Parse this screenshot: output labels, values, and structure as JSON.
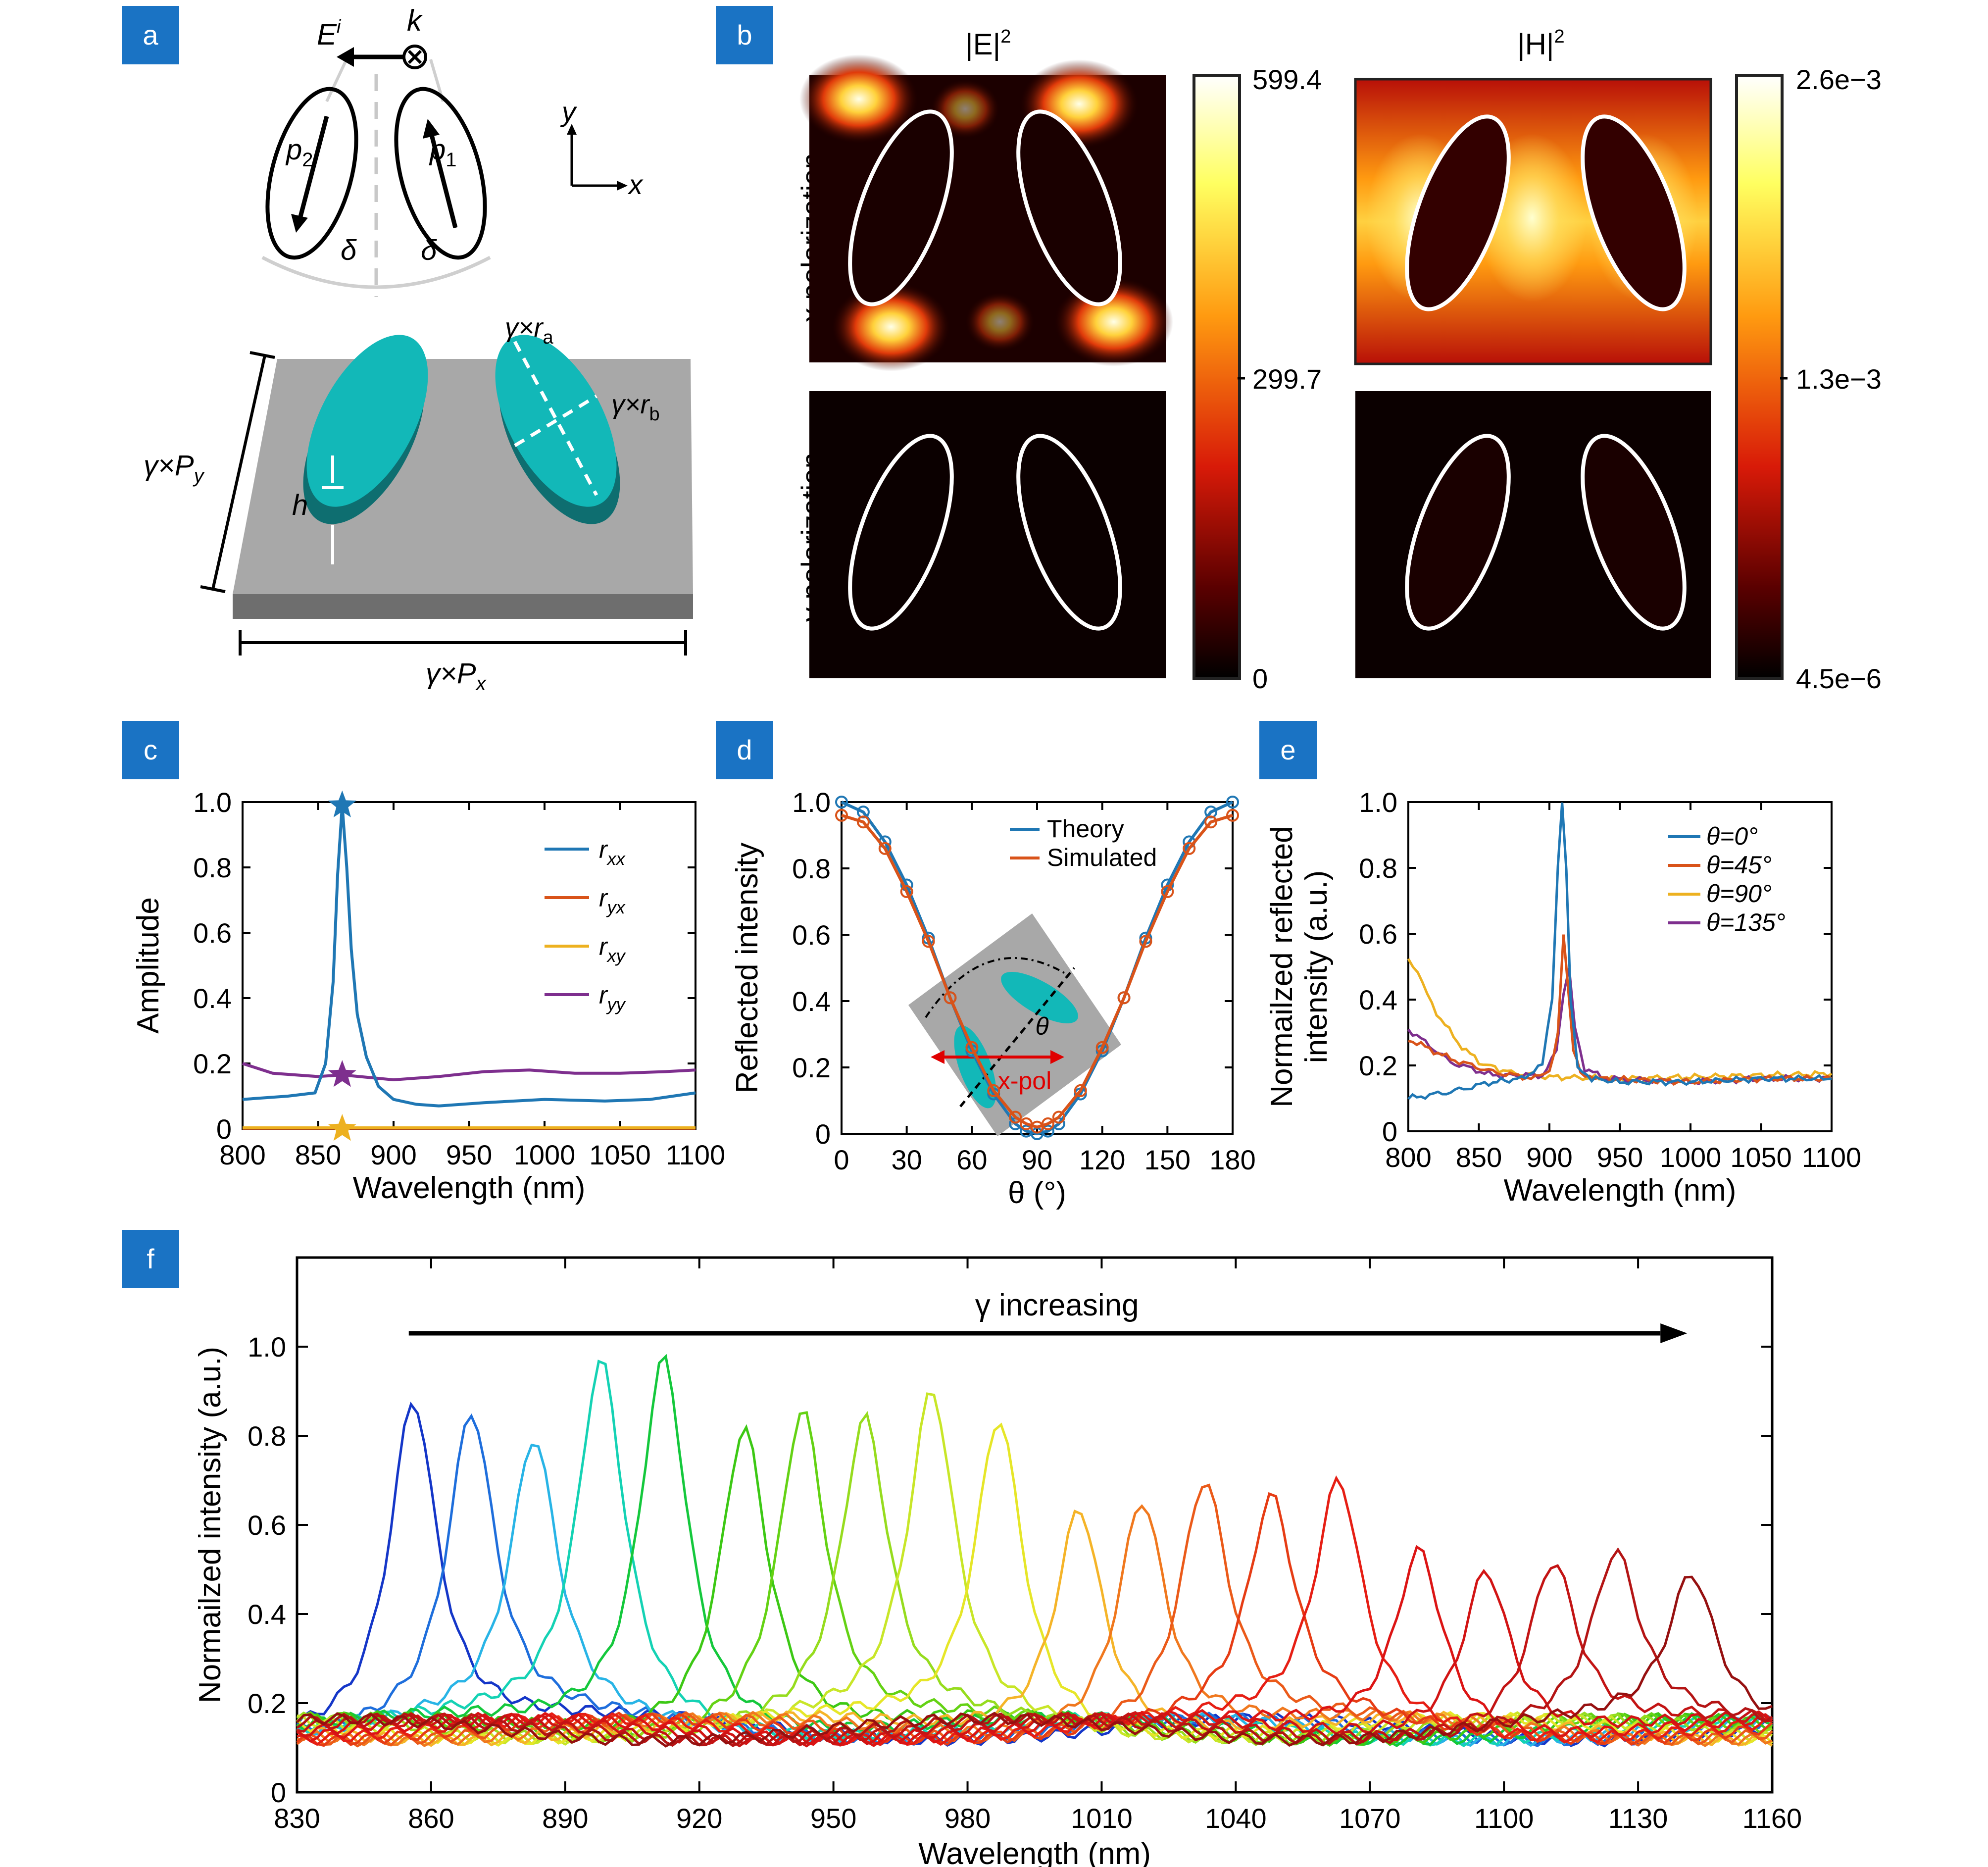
{
  "panels": {
    "a": "a",
    "b": "b",
    "c": "c",
    "d": "d",
    "e": "e",
    "f": "f"
  },
  "panel_a": {
    "incident_field": "E",
    "incident_sup": "i",
    "wavevector": "k",
    "dipole_left": "p",
    "dipole_left_sub": "2",
    "dipole_right": "p",
    "dipole_right_sub": "1",
    "angle": "δ",
    "axis_x": "x",
    "axis_y": "y",
    "dim_ra": "γ×r",
    "dim_ra_sub": "a",
    "dim_rb": "γ×r",
    "dim_rb_sub": "b",
    "dim_py": "γ×P",
    "dim_py_sub": "y",
    "dim_px": "γ×P",
    "dim_px_sub": "x",
    "height": "h",
    "colors": {
      "particle": "#12b8b8",
      "particle_side": "#0e6e70",
      "substrate_top": "#a8a8a8",
      "substrate_side": "#6e6e6e"
    }
  },
  "panel_b": {
    "title_E": "|E|",
    "title_E_sup": "2",
    "title_H": "|H|",
    "title_H_sup": "2",
    "row_x": "x polarization",
    "row_y": "y polarization",
    "cbar_E": [
      "599.4",
      "299.7",
      "0"
    ],
    "cbar_H": [
      "2.6e−3",
      "1.3e−3",
      "4.5e−6"
    ]
  },
  "chart_data": [
    {
      "id": "c",
      "type": "line",
      "xlabel": "Wavelength (nm)",
      "ylabel": "Amplitude",
      "xlim": [
        800,
        1100
      ],
      "ylim": [
        0,
        1.0
      ],
      "xticks": [
        800,
        850,
        900,
        950,
        1000,
        1050,
        1100
      ],
      "yticks": [
        0,
        0.2,
        0.4,
        0.6,
        0.8,
        1.0
      ],
      "ytick_labels": [
        "0",
        "0.2",
        "0.4",
        "0.6",
        "0.8",
        "1.0"
      ],
      "series": [
        {
          "name": "r",
          "sub": "xx",
          "color": "#1f77b4",
          "x": [
            800,
            830,
            848,
            855,
            860,
            863,
            866,
            869,
            872,
            876,
            882,
            890,
            900,
            915,
            930,
            960,
            1000,
            1040,
            1070,
            1100
          ],
          "y": [
            0.09,
            0.1,
            0.11,
            0.2,
            0.45,
            0.78,
            0.99,
            0.8,
            0.55,
            0.35,
            0.22,
            0.13,
            0.09,
            0.075,
            0.07,
            0.08,
            0.09,
            0.085,
            0.09,
            0.11
          ]
        },
        {
          "name": "r",
          "sub": "yx",
          "color": "#d95319",
          "x": [
            800,
            1100
          ],
          "y": [
            0.002,
            0.002
          ]
        },
        {
          "name": "r",
          "sub": "xy",
          "color": "#edb120",
          "x": [
            800,
            1100
          ],
          "y": [
            0.003,
            0.003
          ]
        },
        {
          "name": "r",
          "sub": "yy",
          "color": "#7e2f8e",
          "x": [
            800,
            820,
            850,
            866,
            900,
            930,
            960,
            990,
            1020,
            1050,
            1080,
            1100
          ],
          "y": [
            0.2,
            0.17,
            0.16,
            0.165,
            0.15,
            0.16,
            0.175,
            0.18,
            0.17,
            0.17,
            0.175,
            0.18
          ]
        }
      ],
      "stars": [
        {
          "x": 866,
          "y": 0.99,
          "color": "#1f77b4"
        },
        {
          "x": 866,
          "y": 0.165,
          "color": "#7e2f8e"
        },
        {
          "x": 866,
          "y": 0.0,
          "color": "#edb120"
        }
      ]
    },
    {
      "id": "d",
      "type": "line",
      "xlabel": "θ (°)",
      "ylabel": "Reflected intensity",
      "xlim": [
        0,
        180
      ],
      "ylim": [
        0,
        1.0
      ],
      "xticks": [
        0,
        30,
        60,
        90,
        120,
        150,
        180
      ],
      "yticks": [
        0,
        0.2,
        0.4,
        0.6,
        0.8,
        1.0
      ],
      "ytick_labels": [
        "0",
        "0.2",
        "0.4",
        "0.6",
        "0.8",
        "1.0"
      ],
      "series": [
        {
          "name": "Theory",
          "color": "#1f77b4",
          "x": [
            0,
            10,
            20,
            30,
            40,
            50,
            60,
            70,
            80,
            85,
            90,
            95,
            100,
            110,
            120,
            130,
            140,
            150,
            160,
            170,
            180
          ],
          "y": [
            1.0,
            0.97,
            0.88,
            0.75,
            0.59,
            0.41,
            0.25,
            0.12,
            0.03,
            0.008,
            0.0,
            0.008,
            0.03,
            0.12,
            0.25,
            0.41,
            0.59,
            0.75,
            0.88,
            0.97,
            1.0
          ]
        },
        {
          "name": "Simulated",
          "color": "#d95319",
          "x": [
            0,
            10,
            20,
            30,
            40,
            50,
            60,
            70,
            80,
            85,
            90,
            95,
            100,
            110,
            120,
            130,
            140,
            150,
            160,
            170,
            180
          ],
          "y": [
            0.96,
            0.94,
            0.86,
            0.73,
            0.58,
            0.41,
            0.26,
            0.13,
            0.05,
            0.03,
            0.02,
            0.03,
            0.05,
            0.13,
            0.26,
            0.41,
            0.58,
            0.73,
            0.86,
            0.94,
            0.96
          ]
        }
      ],
      "inset": {
        "theta": "θ",
        "pol": "x-pol"
      }
    },
    {
      "id": "e",
      "type": "line",
      "xlabel": "Wavelength (nm)",
      "ylabel_lines": [
        "Normailzed reflected",
        "intensity (a.u.)"
      ],
      "xlim": [
        800,
        1100
      ],
      "ylim": [
        0,
        1.0
      ],
      "xticks": [
        800,
        850,
        900,
        950,
        1000,
        1050,
        1100
      ],
      "yticks": [
        0,
        0.2,
        0.4,
        0.6,
        0.8,
        1.0
      ],
      "ytick_labels": [
        "0",
        "0.2",
        "0.4",
        "0.6",
        "0.8",
        "1.0"
      ],
      "series": [
        {
          "name": "θ=0°",
          "color": "#1f77b4",
          "x": [
            800,
            830,
            860,
            880,
            895,
            902,
            906,
            909,
            912,
            915,
            920,
            930,
            950,
            1000,
            1050,
            1100
          ],
          "y": [
            0.1,
            0.12,
            0.15,
            0.16,
            0.2,
            0.4,
            0.8,
            1.0,
            0.8,
            0.4,
            0.2,
            0.16,
            0.15,
            0.15,
            0.16,
            0.16
          ]
        },
        {
          "name": "θ=45°",
          "color": "#d95319",
          "x": [
            800,
            830,
            860,
            890,
            900,
            906,
            910,
            913,
            917,
            922,
            935,
            1000,
            1050,
            1100
          ],
          "y": [
            0.28,
            0.22,
            0.18,
            0.16,
            0.18,
            0.3,
            0.6,
            0.45,
            0.25,
            0.18,
            0.16,
            0.15,
            0.16,
            0.16
          ]
        },
        {
          "name": "θ=90°",
          "color": "#edb120",
          "x": [
            800,
            810,
            820,
            835,
            850,
            870,
            900,
            950,
            1000,
            1050,
            1100
          ],
          "y": [
            0.52,
            0.45,
            0.36,
            0.27,
            0.21,
            0.18,
            0.165,
            0.16,
            0.165,
            0.17,
            0.175
          ]
        },
        {
          "name": "θ=135°",
          "color": "#7e2f8e",
          "x": [
            800,
            815,
            830,
            860,
            895,
            905,
            910,
            914,
            918,
            925,
            940,
            1000,
            1050,
            1100
          ],
          "y": [
            0.31,
            0.26,
            0.21,
            0.17,
            0.17,
            0.24,
            0.42,
            0.5,
            0.32,
            0.19,
            0.16,
            0.15,
            0.16,
            0.16
          ]
        }
      ]
    },
    {
      "id": "f",
      "type": "line",
      "xlabel": "Wavelength (nm)",
      "ylabel": "Normailzed intensity (a.u.)",
      "annotation": "γ increasing",
      "xlim": [
        830,
        1160
      ],
      "ylim": [
        0,
        1.2
      ],
      "xticks": [
        830,
        860,
        890,
        920,
        950,
        980,
        1010,
        1040,
        1070,
        1100,
        1130,
        1160
      ],
      "yticks": [
        0,
        0.2,
        0.4,
        0.6,
        0.8,
        1.0
      ],
      "ytick_labels": [
        "0",
        "0.2",
        "0.4",
        "0.6",
        "0.8",
        "1.0"
      ],
      "peaks": [
        {
          "center": 856,
          "height": 0.9,
          "color": "#1436c8"
        },
        {
          "center": 869,
          "height": 0.85,
          "color": "#1e6edc"
        },
        {
          "center": 883,
          "height": 0.78,
          "color": "#28b4e6"
        },
        {
          "center": 898,
          "height": 0.97,
          "color": "#14d2b4"
        },
        {
          "center": 912,
          "height": 1.0,
          "color": "#14c83c"
        },
        {
          "center": 930,
          "height": 0.85,
          "color": "#3cc814"
        },
        {
          "center": 943,
          "height": 0.87,
          "color": "#64d214"
        },
        {
          "center": 957,
          "height": 0.83,
          "color": "#96dc1e"
        },
        {
          "center": 972,
          "height": 0.89,
          "color": "#c8e628"
        },
        {
          "center": 987,
          "height": 0.85,
          "color": "#e6e628"
        },
        {
          "center": 1005,
          "height": 0.67,
          "color": "#f5b428"
        },
        {
          "center": 1019,
          "height": 0.68,
          "color": "#f0781e"
        },
        {
          "center": 1033,
          "height": 0.7,
          "color": "#eb5a19"
        },
        {
          "center": 1048,
          "height": 0.65,
          "color": "#e63c14"
        },
        {
          "center": 1063,
          "height": 0.7,
          "color": "#e61e14"
        },
        {
          "center": 1081,
          "height": 0.57,
          "color": "#dc1414"
        },
        {
          "center": 1096,
          "height": 0.53,
          "color": "#d21414"
        },
        {
          "center": 1111,
          "height": 0.53,
          "color": "#c31414"
        },
        {
          "center": 1125,
          "height": 0.53,
          "color": "#b41414"
        },
        {
          "center": 1142,
          "height": 0.48,
          "color": "#961010"
        }
      ]
    }
  ],
  "colors": {
    "panel_label_bg": "#1a73c4"
  }
}
